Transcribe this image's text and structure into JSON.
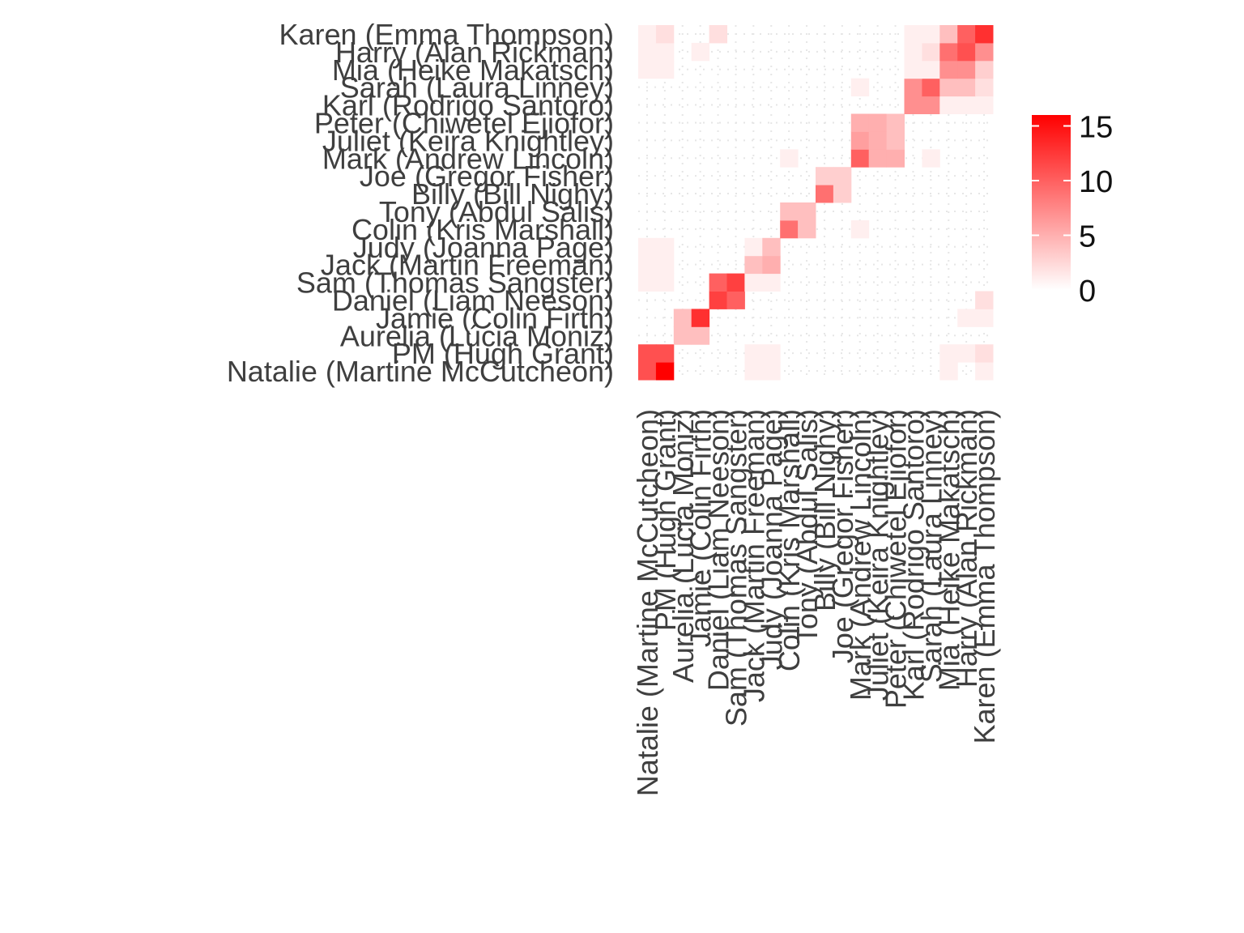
{
  "chart_data": {
    "type": "heatmap",
    "title": "",
    "xlabel": "",
    "ylabel": "",
    "categories": [
      "Natalie (Martine McCutcheon)",
      "PM (Hugh Grant)",
      "Aurelia (Lúcia Moniz)",
      "Jamie (Colin Firth)",
      "Daniel (Liam Neeson)",
      "Sam (Thomas Sangster)",
      "Jack (Martin Freeman)",
      "Judy (Joanna Page)",
      "Colin (Kris Marshall)",
      "Tony (Abdul Salis)",
      "Billy (Bill Nighy)",
      "Joe (Gregor Fisher)",
      "Mark (Andrew Lincoln)",
      "Juliet (Keira Knightley)",
      "Peter (Chiwetel Ejiofor)",
      "Karl (Rodrigo Santoro)",
      "Sarah (Laura Linney)",
      "Mia (Heike Makatsch)",
      "Harry (Alan Rickman)",
      "Karen (Emma Thompson)"
    ],
    "cells": [
      [
        0,
        0,
        11
      ],
      [
        0,
        1,
        16
      ],
      [
        0,
        6,
        1
      ],
      [
        0,
        7,
        1
      ],
      [
        0,
        17,
        1
      ],
      [
        0,
        19,
        1
      ],
      [
        1,
        0,
        11
      ],
      [
        1,
        1,
        11
      ],
      [
        1,
        6,
        1
      ],
      [
        1,
        7,
        1
      ],
      [
        1,
        17,
        1
      ],
      [
        1,
        18,
        1
      ],
      [
        1,
        19,
        2
      ],
      [
        2,
        2,
        4
      ],
      [
        2,
        3,
        4
      ],
      [
        3,
        2,
        4
      ],
      [
        3,
        3,
        13
      ],
      [
        3,
        18,
        1
      ],
      [
        3,
        19,
        1
      ],
      [
        4,
        4,
        12
      ],
      [
        4,
        5,
        10
      ],
      [
        4,
        19,
        2
      ],
      [
        5,
        0,
        1
      ],
      [
        5,
        1,
        1
      ],
      [
        5,
        4,
        10
      ],
      [
        5,
        5,
        12
      ],
      [
        5,
        6,
        1
      ],
      [
        5,
        7,
        1
      ],
      [
        6,
        0,
        1
      ],
      [
        6,
        1,
        1
      ],
      [
        6,
        6,
        4
      ],
      [
        6,
        7,
        5
      ],
      [
        7,
        0,
        1
      ],
      [
        7,
        1,
        1
      ],
      [
        7,
        6,
        1
      ],
      [
        7,
        7,
        4
      ],
      [
        8,
        8,
        9
      ],
      [
        8,
        9,
        4
      ],
      [
        8,
        12,
        1
      ],
      [
        9,
        8,
        4
      ],
      [
        9,
        9,
        4
      ],
      [
        10,
        10,
        9
      ],
      [
        10,
        11,
        3
      ],
      [
        11,
        10,
        3
      ],
      [
        11,
        11,
        3
      ],
      [
        12,
        8,
        1
      ],
      [
        12,
        12,
        10
      ],
      [
        12,
        13,
        5
      ],
      [
        12,
        14,
        5
      ],
      [
        12,
        16,
        1
      ],
      [
        13,
        12,
        6
      ],
      [
        13,
        13,
        5
      ],
      [
        13,
        14,
        4
      ],
      [
        14,
        12,
        5
      ],
      [
        14,
        13,
        5
      ],
      [
        14,
        14,
        4
      ],
      [
        15,
        15,
        7
      ],
      [
        15,
        16,
        7
      ],
      [
        15,
        17,
        1
      ],
      [
        15,
        18,
        1
      ],
      [
        15,
        19,
        1
      ],
      [
        16,
        12,
        1
      ],
      [
        16,
        15,
        7
      ],
      [
        16,
        16,
        10
      ],
      [
        16,
        17,
        4
      ],
      [
        16,
        18,
        4
      ],
      [
        16,
        19,
        2
      ],
      [
        17,
        0,
        1
      ],
      [
        17,
        1,
        1
      ],
      [
        17,
        15,
        1
      ],
      [
        17,
        16,
        1
      ],
      [
        17,
        17,
        7
      ],
      [
        17,
        18,
        7
      ],
      [
        17,
        19,
        3
      ],
      [
        18,
        0,
        1
      ],
      [
        18,
        1,
        1
      ],
      [
        18,
        3,
        1
      ],
      [
        18,
        15,
        1
      ],
      [
        18,
        16,
        2
      ],
      [
        18,
        17,
        9
      ],
      [
        18,
        18,
        11
      ],
      [
        18,
        19,
        7
      ],
      [
        19,
        0,
        1
      ],
      [
        19,
        1,
        2
      ],
      [
        19,
        4,
        2
      ],
      [
        19,
        15,
        1
      ],
      [
        19,
        16,
        1
      ],
      [
        19,
        17,
        4
      ],
      [
        19,
        18,
        10
      ],
      [
        19,
        19,
        13
      ]
    ],
    "color_scale": {
      "min": 0,
      "max": 16,
      "low": "#ffffff",
      "high": "#ff0000"
    },
    "legend": {
      "ticks": [
        0,
        5,
        10,
        15
      ],
      "position": "right"
    },
    "grid": true
  }
}
